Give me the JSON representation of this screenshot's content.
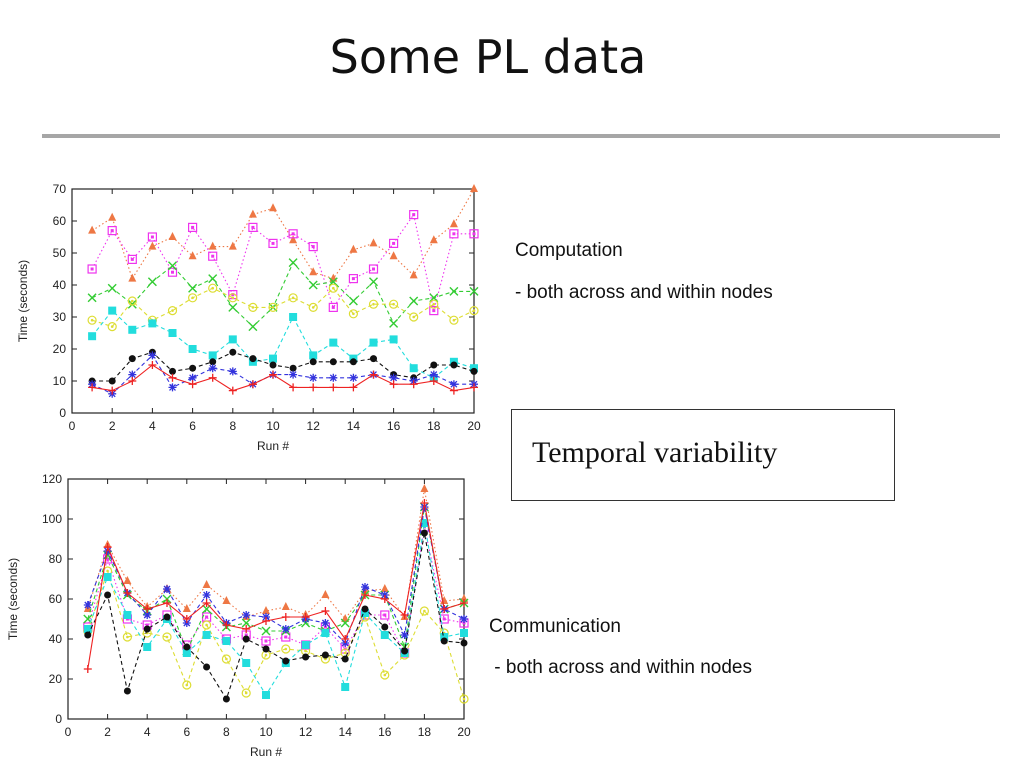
{
  "slide": {
    "title": "Some PL data"
  },
  "notes": {
    "computation_heading": "Computation",
    "computation_detail": "- both across and within nodes",
    "callout": "Temporal variability",
    "communication_heading": "Communication",
    "communication_detail": " - both across and within nodes"
  },
  "chart_data": [
    {
      "type": "line",
      "xlabel": "Run #",
      "ylabel": "Time (seconds)",
      "xlim": [
        0,
        20
      ],
      "ylim": [
        0,
        70
      ],
      "xticks": [
        0,
        2,
        4,
        6,
        8,
        10,
        12,
        14,
        16,
        18,
        20
      ],
      "yticks": [
        0,
        10,
        20,
        30,
        40,
        50,
        60,
        70
      ],
      "x": [
        1,
        2,
        3,
        4,
        5,
        6,
        7,
        8,
        9,
        10,
        11,
        12,
        13,
        14,
        15,
        16,
        17,
        18,
        19,
        20
      ],
      "series": [
        {
          "color": "#ee7744",
          "marker": "triangle",
          "dash": "dotted",
          "values": [
            57,
            61,
            42,
            52,
            55,
            49,
            52,
            52,
            62,
            64,
            54,
            44,
            42,
            51,
            53,
            49,
            43,
            54,
            59,
            70
          ]
        },
        {
          "color": "#ee33ee",
          "marker": "square-open",
          "dash": "dotted",
          "values": [
            45,
            57,
            48,
            55,
            44,
            58,
            49,
            37,
            58,
            53,
            56,
            52,
            33,
            42,
            45,
            53,
            62,
            32,
            56,
            56
          ]
        },
        {
          "color": "#33cc33",
          "marker": "x",
          "dash": "dashed",
          "values": [
            36,
            39,
            34,
            41,
            46,
            39,
            42,
            33,
            27,
            33,
            47,
            40,
            41,
            35,
            41,
            28,
            35,
            36,
            38,
            38
          ]
        },
        {
          "color": "#dddd33",
          "marker": "circle-open",
          "dash": "dashed",
          "values": [
            29,
            27,
            35,
            29,
            32,
            36,
            39,
            36,
            33,
            33,
            36,
            33,
            39,
            31,
            34,
            34,
            30,
            34,
            29,
            32
          ]
        },
        {
          "color": "#22dddd",
          "marker": "square",
          "dash": "dashed",
          "values": [
            24,
            32,
            26,
            28,
            25,
            20,
            18,
            23,
            16,
            17,
            30,
            18,
            22,
            17,
            22,
            23,
            14,
            11,
            16,
            14
          ]
        },
        {
          "color": "#111111",
          "marker": "circle",
          "dash": "dashed",
          "values": [
            10,
            10,
            17,
            19,
            13,
            14,
            16,
            19,
            17,
            15,
            14,
            16,
            16,
            16,
            17,
            12,
            11,
            15,
            15,
            13
          ]
        },
        {
          "color": "#3333dd",
          "marker": "star",
          "dash": "dashed",
          "values": [
            9,
            6,
            12,
            18,
            8,
            11,
            14,
            13,
            9,
            12,
            12,
            11,
            11,
            11,
            12,
            11,
            10,
            12,
            9,
            9
          ]
        },
        {
          "color": "#ee2222",
          "marker": "plus",
          "dash": "solid",
          "values": [
            8,
            7,
            10,
            15,
            11,
            9,
            11,
            7,
            9,
            12,
            8,
            8,
            8,
            8,
            12,
            9,
            9,
            10,
            7,
            8
          ]
        }
      ]
    },
    {
      "type": "line",
      "xlabel": "Run #",
      "ylabel": "Time (seconds)",
      "xlim": [
        0,
        20
      ],
      "ylim": [
        0,
        120
      ],
      "xticks": [
        0,
        2,
        4,
        6,
        8,
        10,
        12,
        14,
        16,
        18,
        20
      ],
      "yticks": [
        0,
        20,
        40,
        60,
        80,
        100,
        120
      ],
      "x": [
        1,
        2,
        3,
        4,
        5,
        6,
        7,
        8,
        9,
        10,
        11,
        12,
        13,
        14,
        15,
        16,
        17,
        18,
        19,
        20
      ],
      "series": [
        {
          "color": "#ee7744",
          "marker": "triangle",
          "dash": "dotted",
          "values": [
            55,
            87,
            69,
            56,
            65,
            55,
            67,
            59,
            51,
            54,
            56,
            52,
            62,
            50,
            64,
            65,
            51,
            115,
            59,
            60
          ]
        },
        {
          "color": "#ee33ee",
          "marker": "square-open",
          "dash": "dotted",
          "values": [
            46,
            80,
            50,
            47,
            52,
            37,
            51,
            40,
            42,
            39,
            41,
            37,
            46,
            35,
            52,
            52,
            33,
            96,
            50,
            48
          ]
        },
        {
          "color": "#33cc33",
          "marker": "x",
          "dash": "dashed",
          "values": [
            50,
            82,
            62,
            54,
            60,
            34,
            55,
            46,
            48,
            44,
            44,
            48,
            44,
            48,
            62,
            62,
            36,
            106,
            55,
            58
          ]
        },
        {
          "color": "#dddd33",
          "marker": "circle-open",
          "dash": "dashed",
          "values": [
            44,
            74,
            41,
            43,
            41,
            17,
            47,
            30,
            13,
            32,
            35,
            34,
            30,
            33,
            51,
            22,
            32,
            54,
            43,
            10
          ]
        },
        {
          "color": "#22dddd",
          "marker": "square",
          "dash": "dashed",
          "values": [
            45,
            71,
            52,
            36,
            50,
            33,
            42,
            39,
            28,
            12,
            28,
            37,
            43,
            16,
            53,
            42,
            33,
            98,
            41,
            43
          ]
        },
        {
          "color": "#111111",
          "marker": "circle",
          "dash": "dashed",
          "values": [
            42,
            62,
            14,
            45,
            51,
            36,
            26,
            10,
            40,
            35,
            29,
            31,
            32,
            30,
            55,
            46,
            34,
            93,
            39,
            38
          ]
        },
        {
          "color": "#3333dd",
          "marker": "star",
          "dash": "dashed",
          "values": [
            57,
            84,
            63,
            52,
            65,
            48,
            62,
            48,
            52,
            51,
            45,
            50,
            48,
            38,
            66,
            62,
            42,
            106,
            55,
            50
          ]
        },
        {
          "color": "#ee2222",
          "marker": "plus",
          "dash": "solid",
          "values": [
            25,
            86,
            63,
            55,
            58,
            50,
            58,
            47,
            45,
            49,
            51,
            51,
            54,
            40,
            62,
            60,
            52,
            108,
            55,
            58
          ]
        }
      ]
    }
  ]
}
